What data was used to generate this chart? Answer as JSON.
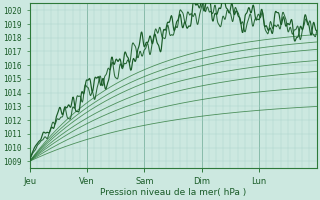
{
  "xlabel": "Pression niveau de la mer( hPa )",
  "ylim": [
    1008.5,
    1020.5
  ],
  "yticks": [
    1009,
    1010,
    1011,
    1012,
    1013,
    1014,
    1015,
    1016,
    1017,
    1018,
    1019,
    1020
  ],
  "day_labels": [
    "Jeu",
    "Ven",
    "Sam",
    "Dim",
    "Lun"
  ],
  "day_positions": [
    0,
    24,
    48,
    72,
    96
  ],
  "total_hours": 120,
  "bg_color": "#cce8e0",
  "grid_color_minor": "#aad4cc",
  "grid_color_major": "#88bbaa",
  "line_color_dark": "#1a5c28",
  "line_color_med": "#2d7a3a",
  "text_color": "#1a5c28",
  "border_color": "#2d7a3a"
}
